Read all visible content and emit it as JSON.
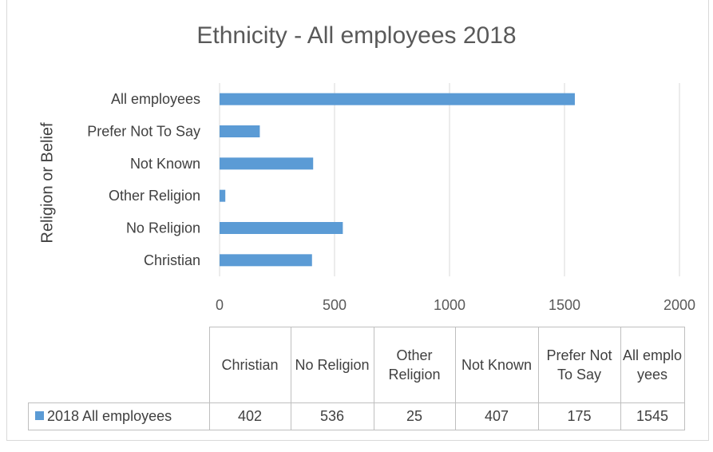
{
  "chart_data": {
    "type": "bar",
    "orientation": "horizontal",
    "title": "Ethnicity - All employees 2018",
    "ylabel": "Religion or Belief",
    "xlabel": "",
    "xlim": [
      0,
      2000
    ],
    "x_ticks": [
      "0",
      "500",
      "1000",
      "1500",
      "2000"
    ],
    "grid": true,
    "bar_color": "#5b9bd5",
    "categories": [
      "Christian",
      "No Religion",
      "Other Religion",
      "Not Known",
      "Prefer Not To Say",
      "All employees"
    ],
    "series": [
      {
        "name": "2018 All employees",
        "values": [
          402,
          536,
          25,
          407,
          175,
          1545
        ]
      }
    ],
    "data_table": {
      "headers": [
        "Christian",
        "No Religion",
        "Other Religion",
        "Not Known",
        "Prefer Not To Say",
        "All employees"
      ],
      "row_label": "2018 All employees",
      "values": [
        "402",
        "536",
        "25",
        "407",
        "175",
        "1545"
      ]
    }
  }
}
